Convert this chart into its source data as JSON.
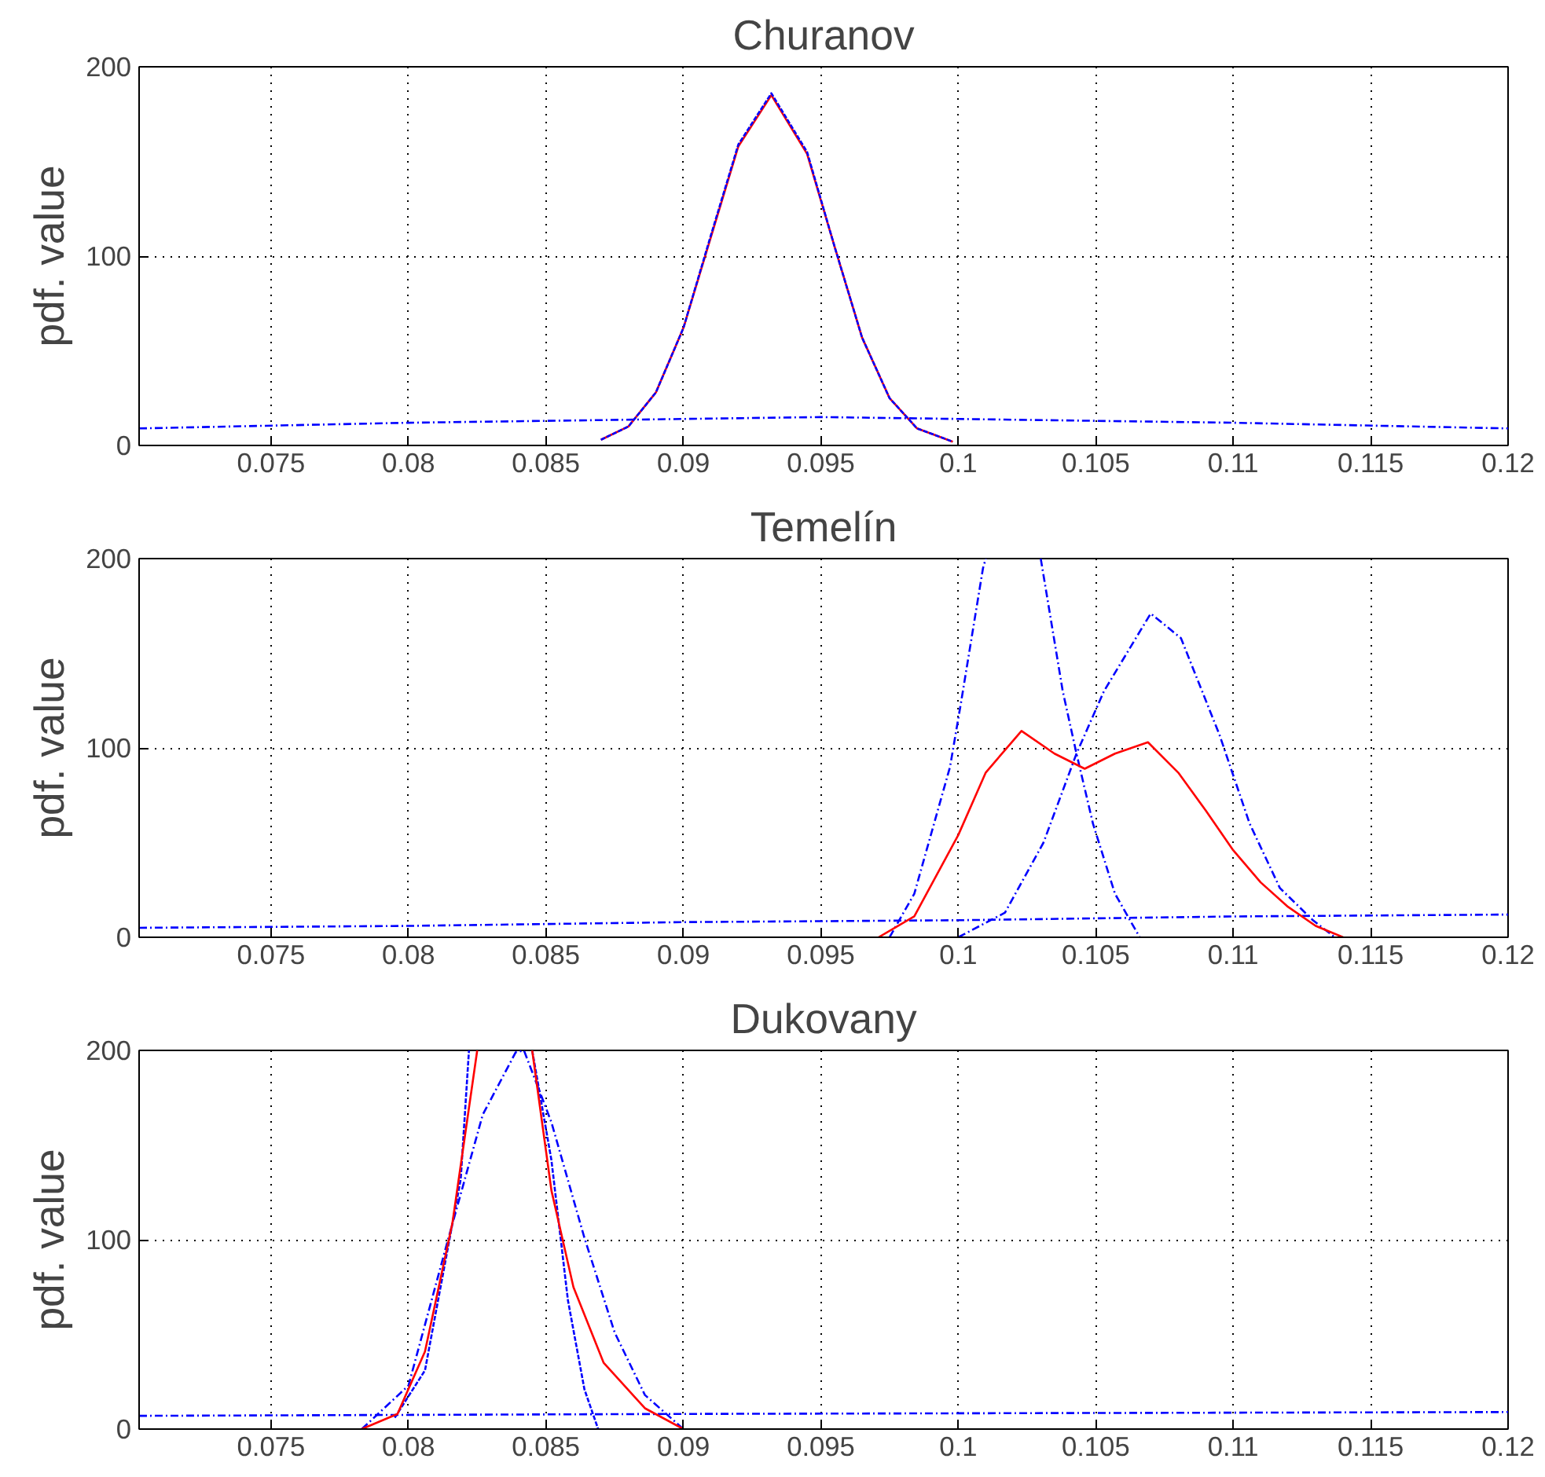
{
  "chart_data": [
    {
      "type": "line",
      "title": "Churanov",
      "ylabel": "pdf. value",
      "xlim": [
        0.0702,
        0.12
      ],
      "xticks": [
        0.075,
        0.08,
        0.085,
        0.09,
        0.095,
        0.1,
        0.105,
        0.11,
        0.115,
        0.12
      ],
      "ylim": [
        0,
        200
      ],
      "yticks": [
        0,
        100,
        200
      ],
      "grid": true,
      "series": [
        {
          "color": "#0000ff",
          "line_style": "dashdot",
          "x": [
            0.0702,
            0.08,
            0.09,
            0.095,
            0.1,
            0.11,
            0.12
          ],
          "values": [
            9,
            12,
            14,
            15,
            14,
            12,
            9
          ]
        },
        {
          "color": "#ff0000",
          "line_style": "solid",
          "x": [
            0.087,
            0.088,
            0.089,
            0.09,
            0.091,
            0.092,
            0.0932,
            0.0945,
            0.0955,
            0.0965,
            0.0975,
            0.0985,
            0.0998
          ],
          "values": [
            3,
            10,
            28,
            62,
            110,
            158,
            185,
            154,
            105,
            57,
            25,
            9,
            2
          ]
        },
        {
          "color": "#0000ff",
          "line_style": "dashed",
          "x": [
            0.087,
            0.088,
            0.089,
            0.09,
            0.091,
            0.092,
            0.0932,
            0.0945,
            0.0955,
            0.0965,
            0.0975,
            0.0985,
            0.0998
          ],
          "values": [
            3,
            10,
            28,
            62,
            111,
            159,
            186,
            155,
            105,
            57,
            25,
            9,
            2
          ]
        }
      ]
    },
    {
      "type": "line",
      "title": "Temelín",
      "ylabel": "pdf. value",
      "xlim": [
        0.0702,
        0.12
      ],
      "xticks": [
        0.075,
        0.08,
        0.085,
        0.09,
        0.095,
        0.1,
        0.105,
        0.11,
        0.115,
        0.12
      ],
      "ylim": [
        0,
        200
      ],
      "yticks": [
        0,
        100,
        200
      ],
      "grid": true,
      "series": [
        {
          "color": "#0000ff",
          "line_style": "dashdot",
          "x": [
            0.0702,
            0.08,
            0.09,
            0.1,
            0.11,
            0.12
          ],
          "values": [
            5,
            6,
            8,
            9,
            11,
            12
          ]
        },
        {
          "color": "#0000ff",
          "line_style": "dashdot",
          "x": [
            0.0975,
            0.0984,
            0.0997,
            0.1001,
            0.1009,
            0.101,
            0.102,
            0.103,
            0.1038,
            0.1043,
            0.1049,
            0.1057,
            0.1066
          ],
          "values": [
            0,
            23,
            90,
            124,
            195,
            200,
            null,
            200,
            130,
            97,
            60,
            23,
            0
          ]
        },
        {
          "color": "#0000ff",
          "line_style": "dashdot",
          "x": [
            0.1,
            0.1017,
            0.1031,
            0.1043,
            0.1053,
            0.107,
            0.1081,
            0.1095,
            0.1106,
            0.1117,
            0.1129,
            0.1137
          ],
          "values": [
            0,
            13,
            50,
            97,
            130,
            171,
            158,
            107,
            60,
            26,
            9,
            0
          ]
        },
        {
          "color": "#ff0000",
          "line_style": "solid",
          "x": [
            0.0971,
            0.0984,
            0.1,
            0.101,
            0.1023,
            0.1035,
            0.1046,
            0.1057,
            0.1069,
            0.108,
            0.109,
            0.11,
            0.111,
            0.112,
            0.113,
            0.114
          ],
          "values": [
            0,
            11,
            54,
            87,
            109,
            97,
            89,
            97,
            103,
            87,
            67,
            46,
            29,
            16,
            6,
            0
          ]
        }
      ]
    },
    {
      "type": "line",
      "title": "Dukovany",
      "ylabel": "pdf. value",
      "xlim": [
        0.0702,
        0.12
      ],
      "xticks": [
        0.075,
        0.08,
        0.085,
        0.09,
        0.095,
        0.1,
        0.105,
        0.11,
        0.115,
        0.12
      ],
      "ylim": [
        0,
        200
      ],
      "yticks": [
        0,
        100,
        200
      ],
      "grid": true,
      "series": [
        {
          "color": "#0000ff",
          "line_style": "dashdot",
          "x": [
            0.0702,
            0.09,
            0.12
          ],
          "values": [
            7,
            8,
            9
          ]
        },
        {
          "color": "#0000ff",
          "line_style": "dashed",
          "x": [
            0.0795,
            0.0806,
            0.0819,
            0.0822,
            0.0833,
            0.0845,
            0.0852,
            0.0858,
            0.0864,
            0.0869
          ],
          "values": [
            6,
            31,
            132,
            200,
            null,
            200,
            142,
            68,
            21,
            0
          ]
        },
        {
          "color": "#0000ff",
          "line_style": "dashdot",
          "x": [
            0.0783,
            0.08,
            0.0814,
            0.0827,
            0.0839,
            0.0842,
            0.0852,
            0.0864,
            0.0875,
            0.0886,
            0.09
          ],
          "values": [
            0,
            23,
            98,
            166,
            199,
            200,
            162,
            101,
            51,
            18,
            0
          ]
        },
        {
          "color": "#ff0000",
          "line_style": "solid",
          "x": [
            0.0783,
            0.0796,
            0.0806,
            0.0816,
            0.0825,
            0.0835,
            0.0845,
            0.0852,
            0.086,
            0.0871,
            0.0886,
            0.09
          ],
          "values": [
            0,
            8,
            41,
            109,
            200,
            null,
            200,
            126,
            75,
            35,
            11,
            0
          ]
        }
      ]
    }
  ]
}
